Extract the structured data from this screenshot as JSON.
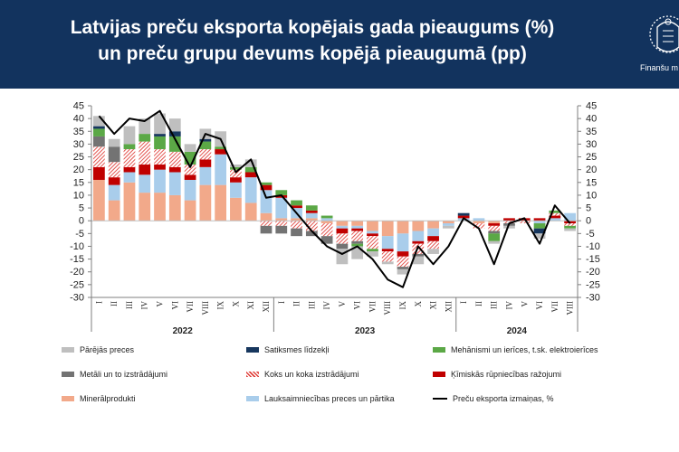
{
  "header": {
    "title_line1": "Latvijas preču eksporta kopējais gada pieaugums (%)",
    "title_line2": "un preču grupu devums kopējā pieaugumā (pp)",
    "logo_text": "Finanšu m",
    "logo_icon": "coat-of-arms-icon",
    "background": "#12335e"
  },
  "chart_data": {
    "type": "bar",
    "stacked": true,
    "categories": [
      "I",
      "II",
      "III",
      "IV",
      "V",
      "VI",
      "VII",
      "VIII",
      "IX",
      "X",
      "XI",
      "XII",
      "I",
      "II",
      "III",
      "IV",
      "V",
      "VI",
      "VII",
      "VIII",
      "IX",
      "X",
      "XI",
      "XII",
      "I",
      "II",
      "III",
      "IV",
      "V",
      "VI",
      "VII",
      "VIII"
    ],
    "years": [
      {
        "label": "2022",
        "start": 0,
        "end": 11
      },
      {
        "label": "2023",
        "start": 12,
        "end": 23
      },
      {
        "label": "2024",
        "start": 24,
        "end": 31
      }
    ],
    "ylim": [
      -30,
      45
    ],
    "yticks": [
      "45",
      "40",
      "35",
      "30",
      "25",
      "20",
      "15",
      "10",
      "5",
      "0",
      "-5",
      "-10",
      "-15",
      "-20",
      "-25",
      "-30"
    ],
    "grid": false,
    "legend_position": "bottom",
    "series": [
      {
        "name": "Minerālprodukti",
        "color": "#f2a98a",
        "values": [
          16,
          8,
          15,
          11,
          11,
          10,
          8,
          14,
          14,
          9,
          7,
          3,
          1,
          1,
          1,
          -1,
          -2,
          -2,
          -4,
          -6,
          -5,
          -4,
          -3,
          -1,
          0,
          -1,
          -1,
          0,
          0,
          0,
          0,
          0
        ]
      },
      {
        "name": "Lauksaimniecības preces un pārtika",
        "color": "#a9cdeb",
        "values": [
          0,
          6,
          4,
          7,
          9,
          9,
          8,
          7,
          12,
          6,
          10,
          9,
          8,
          4,
          2,
          1,
          -1,
          -1,
          -1,
          -5,
          -7,
          -4,
          -3,
          -1,
          1,
          1,
          0,
          0,
          0,
          -1,
          1,
          3
        ]
      },
      {
        "name": "Ķīmiskās rūpniecības ražojumi",
        "color": "#c00000",
        "values": [
          5,
          3,
          2,
          4,
          2,
          2,
          2,
          3,
          2,
          2,
          2,
          2,
          1,
          1,
          1,
          0,
          -2,
          -1,
          -1,
          -1,
          -2,
          -1,
          -2,
          0,
          1,
          0,
          -1,
          1,
          1,
          1,
          1,
          -1
        ]
      },
      {
        "name": "Koks un koka izstrādājumi",
        "color": "hatch",
        "values": [
          8,
          6,
          7,
          9,
          6,
          6,
          4,
          4,
          0,
          3,
          0,
          -2,
          -2,
          -3,
          -4,
          -5,
          -4,
          -4,
          -5,
          -4,
          -4,
          -4,
          -3,
          0,
          0,
          -2,
          -2,
          -1,
          -1,
          0,
          1,
          -1
        ]
      },
      {
        "name": "Metāli un to izstrādājumi",
        "color": "#737373",
        "values": [
          4,
          6,
          0,
          0,
          0,
          0,
          0,
          0,
          0,
          0,
          0,
          -3,
          -3,
          -3,
          -2,
          -3,
          -2,
          -1,
          0,
          0,
          -1,
          -1,
          0,
          0,
          0,
          0,
          -1,
          -1,
          0,
          0,
          0,
          0
        ]
      },
      {
        "name": "Mehānismi un ierīces, t.sk. elektroierīces",
        "color": "#5ba846",
        "values": [
          3,
          0,
          2,
          3,
          5,
          6,
          5,
          3,
          1,
          1,
          2,
          1,
          2,
          2,
          2,
          1,
          0,
          -1,
          -1,
          0,
          0,
          0,
          0,
          0,
          0,
          0,
          -3,
          0,
          0,
          -2,
          1,
          -1
        ]
      },
      {
        "name": "Satiksmes līdzekļi",
        "color": "#17375e",
        "values": [
          1,
          0,
          0,
          0,
          1,
          2,
          0,
          1,
          0,
          0,
          0,
          0,
          0,
          0,
          0,
          0,
          0,
          0,
          0,
          0,
          0,
          0,
          0,
          0,
          1,
          0,
          0,
          0,
          0,
          -2,
          0,
          0
        ]
      },
      {
        "name": "Pārējās preces",
        "color": "#bfbfbf",
        "values": [
          4,
          3,
          7,
          6,
          8,
          5,
          3,
          4,
          6,
          1,
          3,
          0,
          0,
          0,
          0,
          0,
          -6,
          -5,
          -2,
          -1,
          -2,
          -3,
          -2,
          -1,
          0,
          0,
          -1,
          -1,
          0,
          -2,
          0,
          -1
        ]
      }
    ],
    "line": {
      "name": "Preču eksporta izmaiņas, %",
      "color": "#000000",
      "values": [
        41,
        34,
        40,
        39,
        43,
        32,
        21,
        34,
        32,
        19,
        24,
        9,
        10,
        3,
        -4,
        -10,
        -13,
        -10,
        -15,
        -23,
        -26,
        -10,
        -17,
        -10,
        1,
        -3,
        -17,
        -1,
        1,
        -9,
        6,
        -1
      ]
    }
  }
}
